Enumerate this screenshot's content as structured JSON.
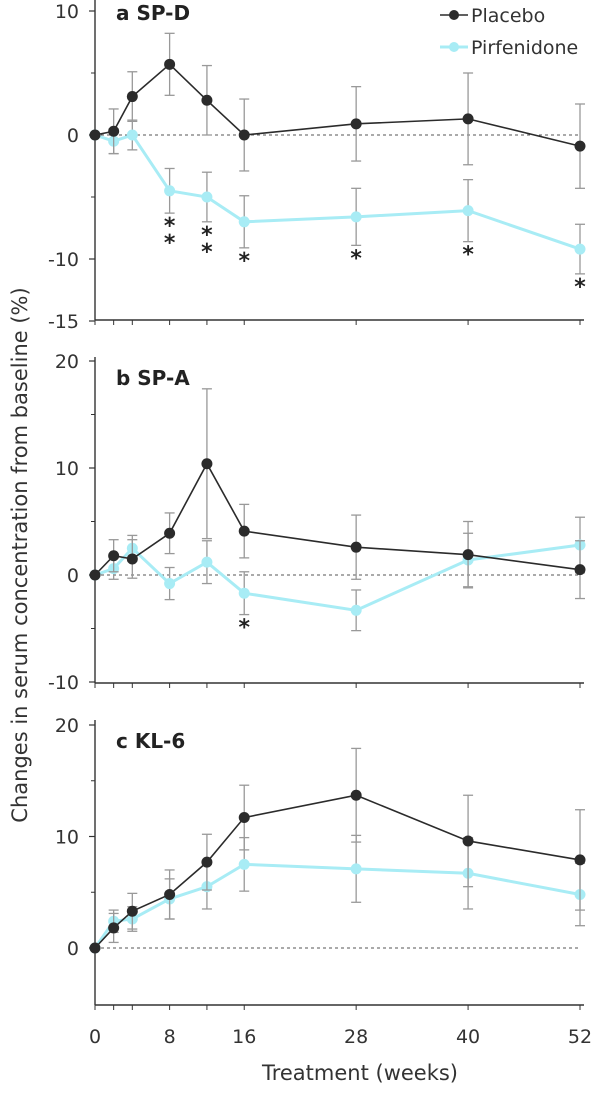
{
  "colors": {
    "placebo": "#2b2b2b",
    "pirfenidone": "#a8ecf5",
    "errorbar": "#999999",
    "axis": "#333333"
  },
  "x_label": "Treatment (weeks)",
  "y_label": "Changes in serum concentration from baseline (%)",
  "legend": {
    "placebo": "Placebo",
    "pirfenidone": "Pirfenidone"
  },
  "chart_data": [
    {
      "type": "line",
      "panel": "a",
      "title": "SP-D",
      "x": [
        0,
        2,
        4,
        8,
        12,
        16,
        28,
        40,
        52
      ],
      "xticks": [
        0,
        8,
        16,
        28,
        40,
        52
      ],
      "ylim": [
        -15,
        10
      ],
      "yticks": [
        10,
        0,
        -10,
        -15
      ],
      "series": [
        {
          "name": "Placebo",
          "values": [
            0,
            0.3,
            3.1,
            5.7,
            2.8,
            0,
            0.9,
            1.3,
            -0.9
          ],
          "err": [
            0,
            1.8,
            2.0,
            2.5,
            2.8,
            2.9,
            3.0,
            3.7,
            3.4
          ]
        },
        {
          "name": "Pirfenidone",
          "values": [
            0,
            -0.5,
            0,
            -4.5,
            -5,
            -7,
            -6.6,
            -6.1,
            -9.2
          ],
          "err": [
            0,
            1.0,
            1.2,
            1.8,
            2.0,
            2.1,
            2.3,
            2.5,
            2.0
          ]
        }
      ],
      "significance": [
        {
          "x": 8,
          "label": "**"
        },
        {
          "x": 12,
          "label": "**"
        },
        {
          "x": 16,
          "label": "*"
        },
        {
          "x": 28,
          "label": "*"
        },
        {
          "x": 40,
          "label": "*"
        },
        {
          "x": 52,
          "label": "*"
        }
      ]
    },
    {
      "type": "line",
      "panel": "b",
      "title": "SP-A",
      "x": [
        0,
        2,
        4,
        8,
        12,
        16,
        28,
        40,
        52
      ],
      "xticks": [
        0,
        8,
        16,
        28,
        40,
        52
      ],
      "ylim": [
        -10,
        20
      ],
      "yticks": [
        20,
        10,
        0,
        -10
      ],
      "series": [
        {
          "name": "Placebo",
          "values": [
            0,
            1.8,
            1.5,
            3.9,
            10.4,
            4.1,
            2.6,
            1.9,
            0.5
          ],
          "err": [
            0,
            1.5,
            1.8,
            1.9,
            7.0,
            2.5,
            3.0,
            3.1,
            2.7
          ]
        },
        {
          "name": "Pirfenidone",
          "values": [
            0,
            0.6,
            2.5,
            -0.8,
            1.2,
            -1.7,
            -3.3,
            1.4,
            2.8
          ],
          "err": [
            0,
            1.0,
            1.2,
            1.5,
            2.0,
            2.0,
            1.9,
            2.5,
            2.6
          ]
        }
      ],
      "significance": [
        {
          "x": 16,
          "label": "*"
        }
      ]
    },
    {
      "type": "line",
      "panel": "c",
      "title": "KL-6",
      "x": [
        0,
        2,
        4,
        8,
        12,
        16,
        28,
        40,
        52
      ],
      "xticks": [
        0,
        8,
        16,
        28,
        40,
        52
      ],
      "ylim": [
        -5,
        20
      ],
      "yticks": [
        20,
        10,
        0
      ],
      "series": [
        {
          "name": "Placebo",
          "values": [
            0,
            1.8,
            3.3,
            4.8,
            7.7,
            11.7,
            13.7,
            9.6,
            7.9
          ],
          "err": [
            0,
            1.3,
            1.6,
            2.2,
            2.5,
            2.9,
            4.2,
            4.1,
            4.5
          ]
        },
        {
          "name": "Pirfenidone",
          "values": [
            0,
            2.4,
            2.6,
            4.4,
            5.5,
            7.5,
            7.1,
            6.7,
            4.8
          ],
          "err": [
            0,
            1.0,
            1.1,
            1.8,
            2.0,
            2.4,
            3.0,
            3.2,
            2.8
          ]
        }
      ],
      "significance": []
    }
  ]
}
